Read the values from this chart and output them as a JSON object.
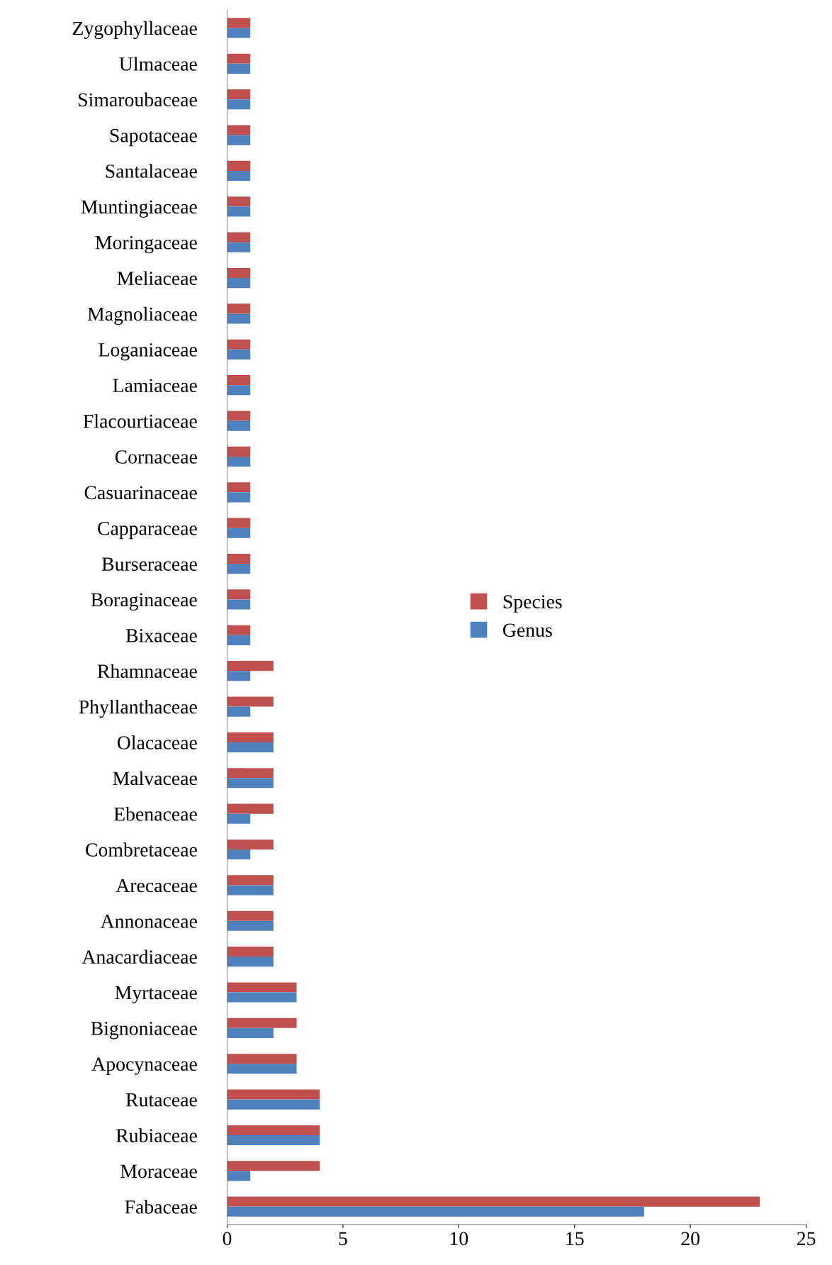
{
  "chart_data": {
    "type": "bar",
    "orientation": "horizontal",
    "categories": [
      "Zygophyllaceae",
      "Ulmaceae",
      "Simaroubaceae",
      "Sapotaceae",
      "Santalaceae",
      "Muntingiaceae",
      "Moringaceae",
      "Meliaceae",
      "Magnoliaceae",
      "Loganiaceae",
      "Lamiaceae",
      "Flacourtiaceae",
      "Cornaceae",
      "Casuarinaceae",
      "Capparaceae",
      "Burseraceae",
      "Boraginaceae",
      "Bixaceae",
      "Rhamnaceae",
      "Phyllanthaceae",
      "Olacaceae",
      "Malvaceae",
      "Ebenaceae",
      "Combretaceae",
      "Arecaceae",
      "Annonaceae",
      "Anacardiaceae",
      "Myrtaceae",
      "Bignoniaceae",
      "Apocynaceae",
      "Rutaceae",
      "Rubiaceae",
      "Moraceae",
      "Fabaceae"
    ],
    "series": [
      {
        "name": "Species",
        "color": "#c0504d",
        "values": [
          1,
          1,
          1,
          1,
          1,
          1,
          1,
          1,
          1,
          1,
          1,
          1,
          1,
          1,
          1,
          1,
          1,
          1,
          2,
          2,
          2,
          2,
          2,
          2,
          2,
          2,
          2,
          3,
          3,
          3,
          4,
          4,
          4,
          23
        ]
      },
      {
        "name": "Genus",
        "color": "#4f81bd",
        "values": [
          1,
          1,
          1,
          1,
          1,
          1,
          1,
          1,
          1,
          1,
          1,
          1,
          1,
          1,
          1,
          1,
          1,
          1,
          1,
          1,
          2,
          2,
          1,
          1,
          2,
          2,
          2,
          3,
          2,
          3,
          4,
          4,
          1,
          18
        ]
      }
    ],
    "xlim": [
      0,
      25
    ],
    "xticks": [
      0,
      5,
      10,
      15,
      20,
      25
    ],
    "grid": false,
    "legend": "center"
  }
}
